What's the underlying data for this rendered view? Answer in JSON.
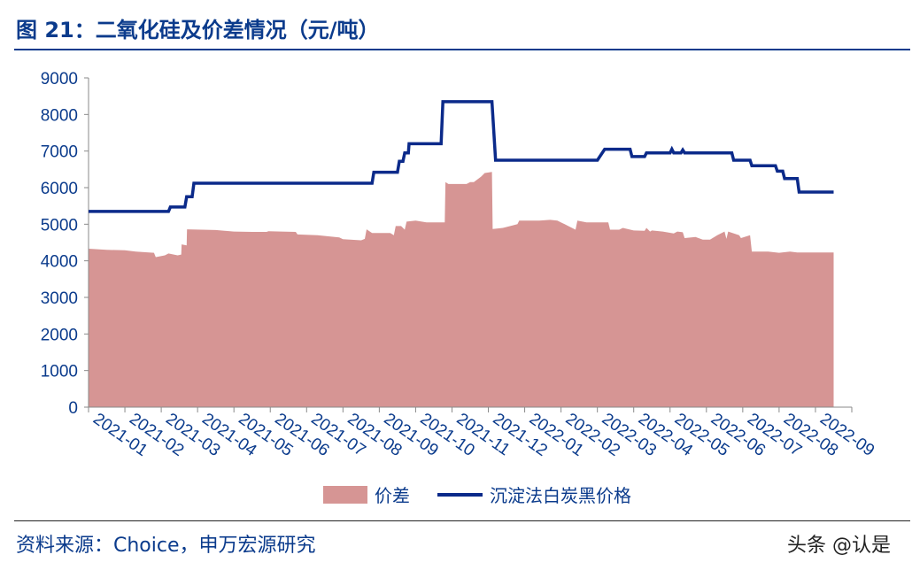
{
  "title": "图 21：二氧化硅及价差情况（元/吨）",
  "source": "资料来源：Choice，申万宏源研究",
  "watermark": "头条 @认是",
  "colors": {
    "spread": "#d69594",
    "price": "#0b2a8a",
    "axis_text": "#0b3b8c"
  },
  "chart_data": {
    "type": "area",
    "ylim": [
      0,
      9000
    ],
    "yticks": [
      0,
      1000,
      2000,
      3000,
      4000,
      5000,
      6000,
      7000,
      8000,
      9000
    ],
    "x_tick_labels": [
      "2021-01",
      "2021-02",
      "2021-03",
      "2021-04",
      "2021-05",
      "2021-06",
      "2021-07",
      "2021-08",
      "2021-09",
      "2021-10",
      "2021-11",
      "2021-12",
      "2022-01",
      "2022-02",
      "2022-03",
      "2022-04",
      "2022-05",
      "2022-06",
      "2022-07",
      "2022-08",
      "2022-09"
    ],
    "legend_position": "bottom",
    "series": [
      {
        "name": "价差",
        "type": "area",
        "points": [
          [
            0,
            4330
          ],
          [
            0.5,
            4300
          ],
          [
            1.0,
            4290
          ],
          [
            1.3,
            4250
          ],
          [
            1.8,
            4220
          ],
          [
            1.85,
            4100
          ],
          [
            2.1,
            4150
          ],
          [
            2.2,
            4200
          ],
          [
            2.45,
            4150
          ],
          [
            2.55,
            4170
          ],
          [
            2.56,
            4450
          ],
          [
            2.7,
            4420
          ],
          [
            2.71,
            4860
          ],
          [
            3.5,
            4840
          ],
          [
            4.0,
            4800
          ],
          [
            4.5,
            4790
          ],
          [
            4.9,
            4790
          ],
          [
            4.95,
            4810
          ],
          [
            5.3,
            4800
          ],
          [
            5.7,
            4790
          ],
          [
            5.75,
            4720
          ],
          [
            6.3,
            4700
          ],
          [
            6.9,
            4640
          ],
          [
            7.0,
            4590
          ],
          [
            7.5,
            4560
          ],
          [
            7.6,
            4600
          ],
          [
            7.65,
            4860
          ],
          [
            7.8,
            4760
          ],
          [
            8.3,
            4760
          ],
          [
            8.4,
            4700
          ],
          [
            8.45,
            4950
          ],
          [
            8.6,
            4950
          ],
          [
            8.7,
            4850
          ],
          [
            8.75,
            5070
          ],
          [
            9.0,
            5100
          ],
          [
            9.3,
            5050
          ],
          [
            9.8,
            5050
          ],
          [
            9.82,
            6150
          ],
          [
            9.9,
            6100
          ],
          [
            10.4,
            6100
          ],
          [
            10.5,
            6150
          ],
          [
            10.6,
            6150
          ],
          [
            10.8,
            6300
          ],
          [
            10.9,
            6400
          ],
          [
            11.1,
            6430
          ],
          [
            11.12,
            4870
          ],
          [
            11.4,
            4900
          ],
          [
            11.8,
            5000
          ],
          [
            11.85,
            5100
          ],
          [
            12.2,
            5100
          ],
          [
            12.4,
            5100
          ],
          [
            12.7,
            5120
          ],
          [
            12.9,
            5100
          ],
          [
            13.1,
            5000
          ],
          [
            13.4,
            4850
          ],
          [
            13.45,
            5100
          ],
          [
            13.7,
            5050
          ],
          [
            14.2,
            5050
          ],
          [
            14.3,
            5050
          ],
          [
            14.35,
            4850
          ],
          [
            14.6,
            4850
          ],
          [
            14.7,
            4900
          ],
          [
            15.0,
            4830
          ],
          [
            15.3,
            4820
          ],
          [
            15.35,
            4900
          ],
          [
            15.45,
            4800
          ],
          [
            15.5,
            4830
          ],
          [
            15.8,
            4800
          ],
          [
            16.1,
            4750
          ],
          [
            16.2,
            4800
          ],
          [
            16.35,
            4780
          ],
          [
            16.4,
            4620
          ],
          [
            16.7,
            4650
          ],
          [
            16.9,
            4580
          ],
          [
            17.1,
            4580
          ],
          [
            17.3,
            4700
          ],
          [
            17.5,
            4800
          ],
          [
            17.55,
            4600
          ],
          [
            17.6,
            4800
          ],
          [
            17.9,
            4700
          ],
          [
            17.95,
            4620
          ],
          [
            18.2,
            4700
          ],
          [
            18.25,
            4250
          ],
          [
            18.7,
            4250
          ],
          [
            19.0,
            4220
          ],
          [
            19.3,
            4250
          ],
          [
            19.5,
            4230
          ],
          [
            19.85,
            4230
          ],
          [
            20.5,
            4230
          ]
        ]
      },
      {
        "name": "沉淀法白炭黑价格",
        "type": "line",
        "points": [
          [
            0,
            5350
          ],
          [
            2.2,
            5350
          ],
          [
            2.25,
            5470
          ],
          [
            2.65,
            5470
          ],
          [
            2.7,
            5750
          ],
          [
            2.85,
            5750
          ],
          [
            2.9,
            6120
          ],
          [
            7.8,
            6120
          ],
          [
            7.85,
            6420
          ],
          [
            8.5,
            6420
          ],
          [
            8.55,
            6720
          ],
          [
            8.65,
            6720
          ],
          [
            8.7,
            6950
          ],
          [
            8.8,
            6950
          ],
          [
            8.82,
            7200
          ],
          [
            9.7,
            7200
          ],
          [
            9.75,
            8350
          ],
          [
            11.1,
            8350
          ],
          [
            11.2,
            6750
          ],
          [
            14.0,
            6750
          ],
          [
            14.2,
            7050
          ],
          [
            14.9,
            7050
          ],
          [
            14.95,
            6850
          ],
          [
            15.3,
            6850
          ],
          [
            15.35,
            6950
          ],
          [
            16.0,
            6950
          ],
          [
            16.05,
            7050
          ],
          [
            16.1,
            6950
          ],
          [
            16.3,
            6950
          ],
          [
            16.35,
            7030
          ],
          [
            16.4,
            6950
          ],
          [
            17.7,
            6950
          ],
          [
            17.75,
            6750
          ],
          [
            18.2,
            6750
          ],
          [
            18.25,
            6600
          ],
          [
            18.9,
            6600
          ],
          [
            18.95,
            6450
          ],
          [
            19.1,
            6450
          ],
          [
            19.15,
            6250
          ],
          [
            19.5,
            6250
          ],
          [
            19.55,
            5880
          ],
          [
            20.5,
            5880
          ]
        ]
      }
    ]
  }
}
